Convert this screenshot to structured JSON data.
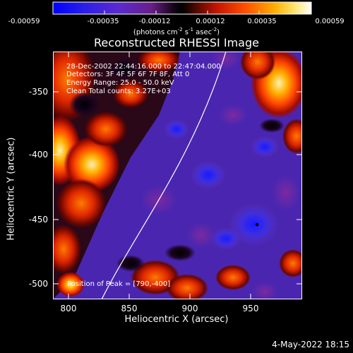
{
  "colorbar": {
    "ticks": [
      "-0.00059",
      "-0.00035",
      "-0.00012",
      "0.00012",
      "0.00035",
      "0.00059"
    ],
    "units_prefix": "(photons cm",
    "units_exp1": "-2",
    "units_mid1": " s",
    "units_exp2": "-1",
    "units_mid2": " asec",
    "units_exp3": "-2",
    "units_suffix": ")"
  },
  "title": "Reconstructed RHESSI Image",
  "info": {
    "time_range": "28-Dec-2002 22:44:16.000 to 22:47:04.000",
    "detectors": "Detectors: 3F 4F 5F 6F 7F 8F, Att 0",
    "energy": "Energy Range: 25.0 - 50.0 keV",
    "clean": "Clean    Total counts: 3.27E+03"
  },
  "peak": "Position of Peak = [790,-400]",
  "x_axis": {
    "label": "Heliocentric X (arcsec)",
    "ticks": [
      "800",
      "850",
      "900",
      "950"
    ]
  },
  "y_axis": {
    "label": "Heliocentric Y (arcsec)",
    "ticks": [
      "-350",
      "-400",
      "-450",
      "-500"
    ]
  },
  "footer": {
    "date": "4-May-2022 18:15"
  },
  "colors": {
    "background": "#000000",
    "foreground": "#ffffff",
    "cmap_low": "#0000ff",
    "cmap_mid": "#000000",
    "cmap_high": "#ffffff"
  }
}
